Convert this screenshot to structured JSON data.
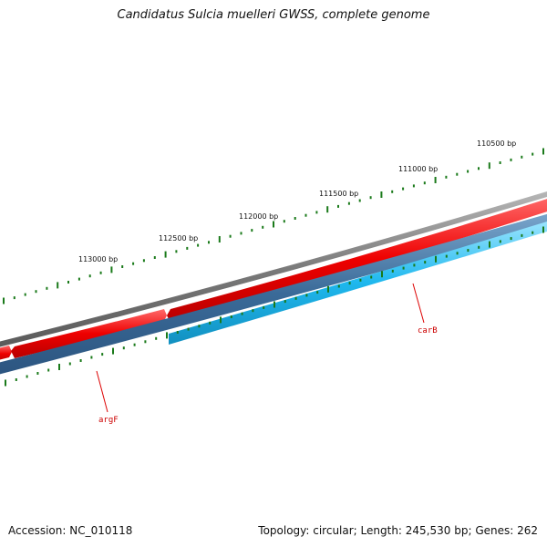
{
  "title": "Candidatus Sulcia muelleri GWSS, complete genome",
  "footer": {
    "accession": "Accession: NC_010118",
    "summary": "Topology: circular; Length: 245,530 bp; Genes: 262"
  },
  "bp_labels": [
    "110500 bp",
    "111000 bp",
    "111500 bp",
    "112000 bp",
    "112500 bp",
    "113000 bp"
  ],
  "genes": [
    {
      "name": "carB",
      "color": "#cc0000"
    },
    {
      "name": "argF",
      "color": "#cc0000"
    }
  ],
  "colors": {
    "backbone": "#7a7a7a",
    "forward_cds": "#ee0000",
    "reverse_cds_dark": "#3a6a98",
    "reverse_cds_light": "#1fb8ee",
    "ticks": "#1a7a1a",
    "label_line": "#dd0000"
  }
}
